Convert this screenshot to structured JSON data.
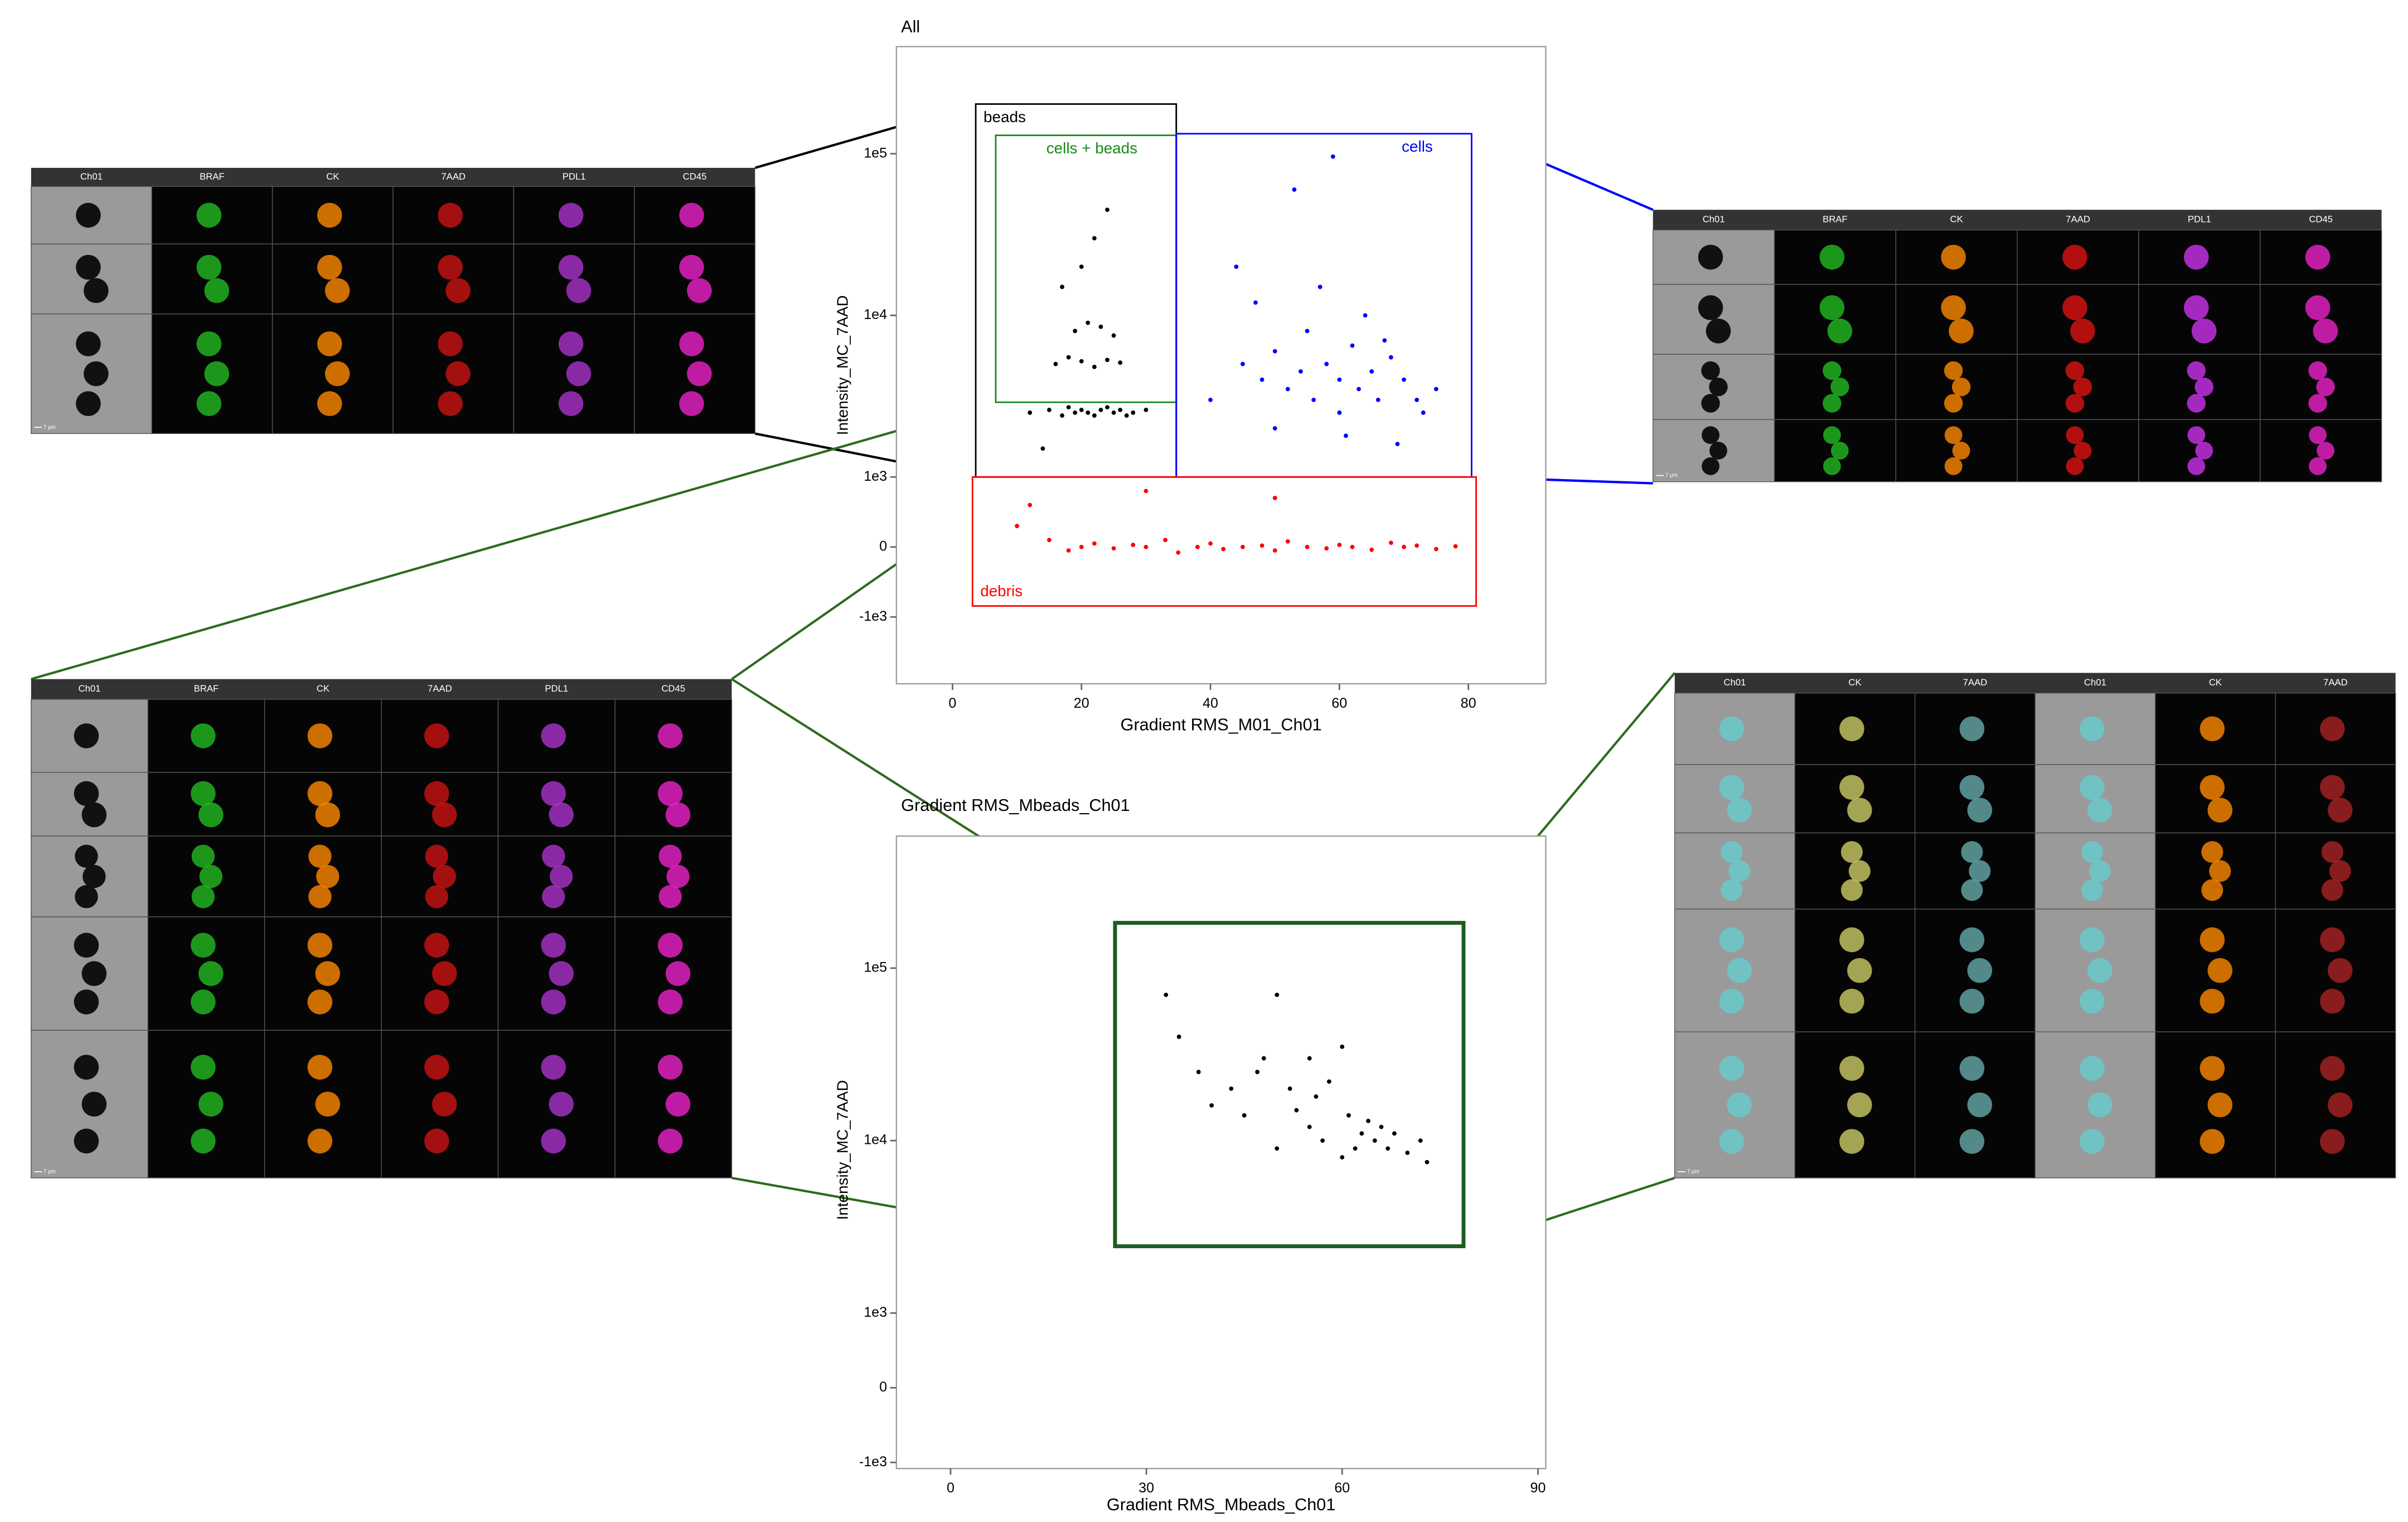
{
  "chart_data": [
    {
      "type": "scatter",
      "title": "All",
      "xlabel": "Gradient RMS_M01_Ch01",
      "ylabel": "Intensity_MC_7AAD",
      "yscale": "logicle",
      "xlim": [
        -8.7,
        92
      ],
      "xticks": [
        0,
        20,
        40,
        60,
        80
      ],
      "ylim": [
        -2590,
        460000
      ],
      "yticks": [
        {
          "value": -1000,
          "label": "-1e3"
        },
        0,
        {
          "value": 1000,
          "label": "1e3"
        },
        {
          "value": 10000,
          "label": "1e4"
        },
        {
          "value": 100000,
          "label": "1e5"
        }
      ],
      "series": [
        {
          "color": "#000000",
          "x": [
            12,
            15,
            17,
            18,
            19,
            20,
            21,
            22,
            23,
            24,
            25,
            26,
            27,
            28,
            30,
            16,
            18,
            20,
            22,
            24,
            26,
            19,
            21,
            23,
            25,
            17,
            20,
            22,
            24,
            14
          ],
          "values": [
            2500,
            2600,
            2400,
            2700,
            2500,
            2600,
            2500,
            2400,
            2600,
            2700,
            2500,
            2600,
            2400,
            2500,
            2600,
            5000,
            5500,
            5200,
            4800,
            5300,
            5100,
            8000,
            9000,
            8500,
            7500,
            15000,
            20000,
            30000,
            45000,
            1500
          ]
        },
        {
          "color": "#0000ff",
          "x": [
            40,
            45,
            48,
            50,
            52,
            54,
            55,
            56,
            58,
            60,
            60,
            62,
            63,
            64,
            65,
            66,
            68,
            70,
            72,
            75,
            44,
            50,
            57,
            61,
            67,
            73,
            47,
            53,
            59,
            69
          ],
          "values": [
            3000,
            5000,
            4000,
            6000,
            3500,
            4500,
            8000,
            3000,
            5000,
            2500,
            4000,
            6500,
            3500,
            10000,
            4500,
            3000,
            5500,
            4000,
            3000,
            3500,
            20000,
            2000,
            15000,
            1800,
            7000,
            2500,
            12000,
            60000,
            96000,
            1600
          ]
        },
        {
          "color": "#ff0000",
          "x": [
            10,
            12,
            15,
            18,
            20,
            22,
            25,
            28,
            30,
            33,
            35,
            38,
            40,
            42,
            45,
            48,
            50,
            52,
            55,
            58,
            60,
            62,
            65,
            68,
            70,
            72,
            75,
            78,
            30,
            50
          ],
          "values": [
            300,
            600,
            100,
            -50,
            0,
            50,
            -20,
            30,
            0,
            100,
            -80,
            0,
            50,
            -30,
            0,
            20,
            -50,
            80,
            0,
            -20,
            30,
            0,
            -40,
            60,
            0,
            20,
            -30,
            10,
            800,
            700
          ]
        }
      ],
      "gates": [
        {
          "label": "beads",
          "color": "#000000",
          "xrange": [
            3.6,
            34.7
          ],
          "yrange": [
            1000,
            203000
          ]
        },
        {
          "label": "cells + beads",
          "color": "#1a8a1a",
          "xrange": [
            6.7,
            34.7
          ],
          "yrange": [
            2900,
            130000
          ]
        },
        {
          "label": "cells",
          "color": "#0000ff",
          "xrange": [
            34.7,
            80.5
          ],
          "yrange": [
            1000,
            133000
          ]
        },
        {
          "label": "debris",
          "color": "#ff0000",
          "xrange": [
            3.1,
            81.2
          ],
          "yrange": [
            -843,
            1000
          ]
        }
      ]
    },
    {
      "type": "scatter",
      "title": "Gradient RMS_Mbeads_Ch01",
      "xlabel": "Gradient RMS_Mbeads_Ch01",
      "ylabel": "Intensity_MC_7AAD",
      "yscale": "logicle",
      "xlim": [
        -8.3,
        91.2
      ],
      "xticks": [
        0,
        30,
        60,
        90
      ],
      "ylim": [
        -1085,
        583000
      ],
      "yticks": [
        {
          "value": -1000,
          "label": "-1e3"
        },
        0,
        {
          "value": 1000,
          "label": "1e3"
        },
        {
          "value": 10000,
          "label": "1e4"
        },
        {
          "value": 100000,
          "label": "1e5"
        }
      ],
      "series": [
        {
          "color": "#000000",
          "x": [
            33,
            35,
            38,
            40,
            45,
            47,
            48,
            50,
            52,
            53,
            55,
            56,
            57,
            58,
            60,
            61,
            62,
            63,
            64,
            65,
            66,
            67,
            68,
            70,
            72,
            73,
            55,
            60,
            50,
            43
          ],
          "values": [
            70000,
            40000,
            25000,
            16000,
            14000,
            25000,
            30000,
            70000,
            20000,
            15000,
            12000,
            18000,
            10000,
            22000,
            8000,
            14000,
            9000,
            11000,
            13000,
            10000,
            12000,
            9000,
            11000,
            8500,
            10000,
            7500,
            30000,
            35000,
            9000,
            20000
          ]
        }
      ],
      "gates": [
        {
          "color": "#1f5c1f",
          "xrange": [
            25.2,
            78.6
          ],
          "yrange": [
            2440,
            183000
          ]
        }
      ]
    }
  ],
  "galleries": [
    {
      "channels": [
        "Ch01",
        "BRAF",
        "CK",
        "7AAD",
        "PDL1",
        "CD45"
      ],
      "scale_bar": "7 µm"
    },
    {
      "channels": [
        "Ch01",
        "BRAF",
        "CK",
        "7AAD",
        "PDL1",
        "CD45"
      ],
      "scale_bar": "7 µm"
    },
    {
      "channels": [
        "Ch01",
        "BRAF",
        "CK",
        "7AAD",
        "PDL1",
        "CD45"
      ],
      "scale_bar": "7 µm"
    },
    {
      "channels": [
        "Ch01",
        "CK",
        "7AAD",
        "Ch01",
        "CK",
        "7AAD"
      ],
      "scale_bar": "7 µm"
    }
  ]
}
